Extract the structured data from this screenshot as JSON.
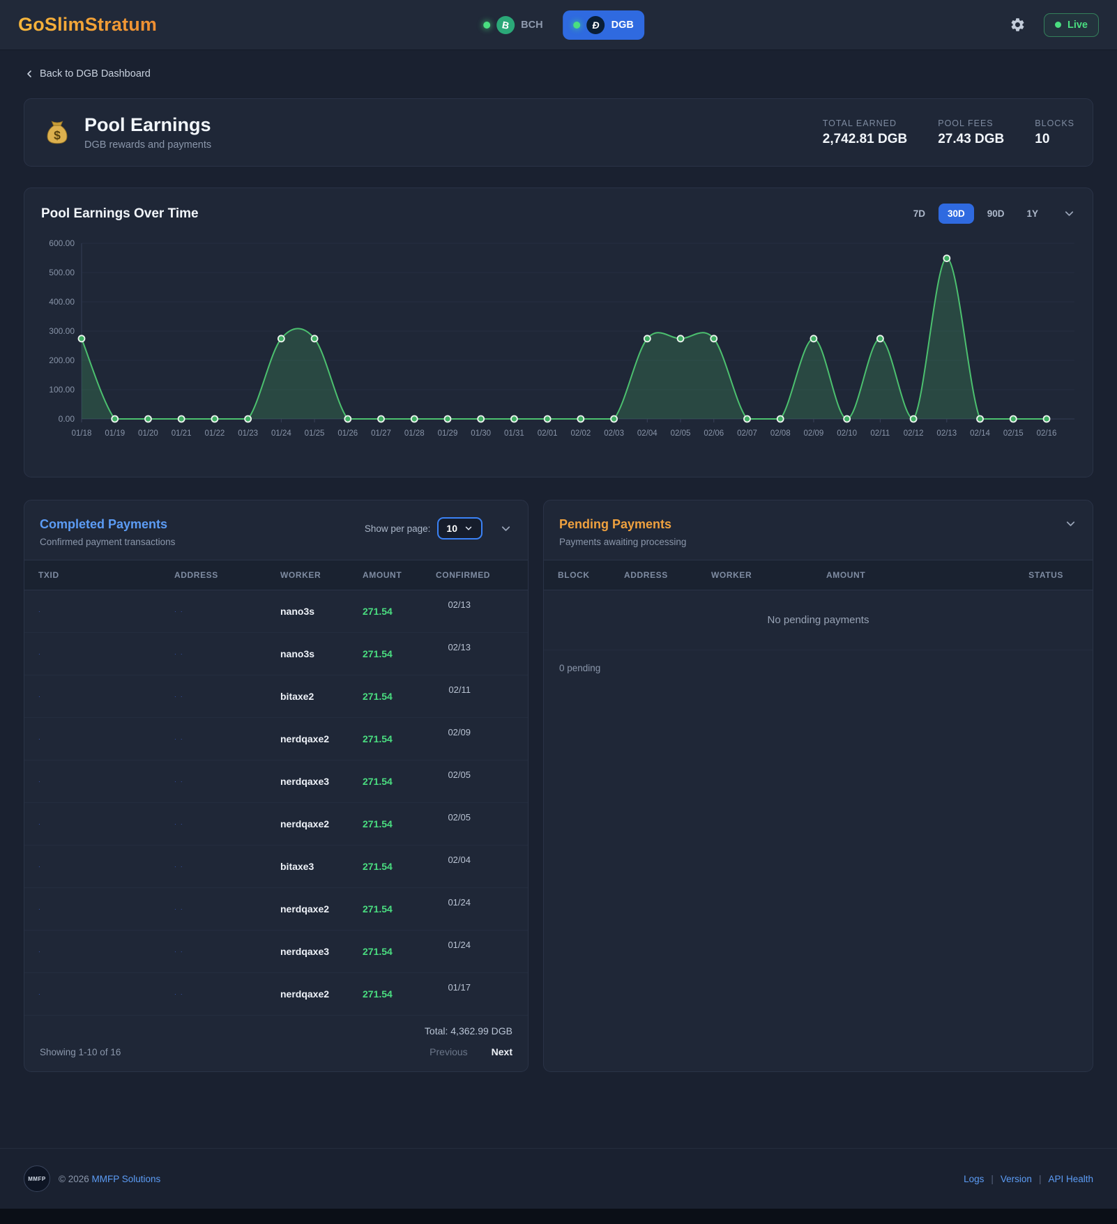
{
  "header": {
    "logo": "GoSlimStratum",
    "coins": [
      {
        "label": "BCH",
        "active": false
      },
      {
        "label": "DGB",
        "active": true
      }
    ],
    "live_label": "Live"
  },
  "breadcrumb": {
    "label": "Back to DGB Dashboard"
  },
  "summary": {
    "title": "Pool Earnings",
    "subtitle": "DGB rewards and payments",
    "stats": [
      {
        "label": "TOTAL EARNED",
        "value": "2,742.81 DGB"
      },
      {
        "label": "POOL FEES",
        "value": "27.43 DGB"
      },
      {
        "label": "BLOCKS",
        "value": "10"
      }
    ]
  },
  "chart_data": {
    "type": "area",
    "title": "Pool Earnings Over Time",
    "x": [
      "01/18",
      "01/19",
      "01/20",
      "01/21",
      "01/22",
      "01/23",
      "01/24",
      "01/25",
      "01/26",
      "01/27",
      "01/28",
      "01/29",
      "01/30",
      "01/31",
      "02/01",
      "02/02",
      "02/03",
      "02/04",
      "02/05",
      "02/06",
      "02/07",
      "02/08",
      "02/09",
      "02/10",
      "02/11",
      "02/12",
      "02/13",
      "02/14",
      "02/15",
      "02/16"
    ],
    "values": [
      274.28,
      0,
      0,
      0,
      0,
      0,
      274.28,
      274.28,
      0,
      0,
      0,
      0,
      0,
      0,
      0,
      0,
      0,
      274.28,
      274.28,
      274.28,
      0,
      0,
      274.28,
      0,
      274.28,
      0,
      548.56,
      0,
      0,
      0
    ],
    "ylim": [
      0,
      600
    ],
    "ytick_step": 100,
    "grid": true,
    "legend_position": "none",
    "line_color": "#4cc06f",
    "fill_color": "rgba(76,192,111,0.22)",
    "marker_fill": "#3fae63",
    "marker_stroke": "#eef5f0",
    "ranges": [
      "7D",
      "30D",
      "90D",
      "1Y"
    ],
    "active_range": "30D"
  },
  "completed": {
    "title": "Completed Payments",
    "subtitle": "Confirmed payment transactions",
    "show_per_page_label": "Show per page:",
    "per_page": "10",
    "columns": [
      "TXID",
      "ADDRESS",
      "WORKER",
      "AMOUNT",
      "CONFIRMED"
    ],
    "rows": [
      {
        "txid": "·",
        "address": "· ·",
        "worker": "nano3s",
        "amount": "271.54",
        "confirmed": "02/13"
      },
      {
        "txid": "·",
        "address": "· ·",
        "worker": "nano3s",
        "amount": "271.54",
        "confirmed": "02/13"
      },
      {
        "txid": "·",
        "address": "· ·",
        "worker": "bitaxe2",
        "amount": "271.54",
        "confirmed": "02/11"
      },
      {
        "txid": "·",
        "address": "· ·",
        "worker": "nerdqaxe2",
        "amount": "271.54",
        "confirmed": "02/09"
      },
      {
        "txid": "·",
        "address": "· ·",
        "worker": "nerdqaxe3",
        "amount": "271.54",
        "confirmed": "02/05"
      },
      {
        "txid": "·",
        "address": "· ·",
        "worker": "nerdqaxe2",
        "amount": "271.54",
        "confirmed": "02/05"
      },
      {
        "txid": "·",
        "address": "· ·",
        "worker": "bitaxe3",
        "amount": "271.54",
        "confirmed": "02/04"
      },
      {
        "txid": "·",
        "address": "· ·",
        "worker": "nerdqaxe2",
        "amount": "271.54",
        "confirmed": "01/24"
      },
      {
        "txid": "·",
        "address": "· ·",
        "worker": "nerdqaxe3",
        "amount": "271.54",
        "confirmed": "01/24"
      },
      {
        "txid": "·",
        "address": "· ·",
        "worker": "nerdqaxe2",
        "amount": "271.54",
        "confirmed": "01/17"
      }
    ],
    "total_label": "Total: 4,362.99 DGB",
    "showing": "Showing 1-10 of 16",
    "prev_label": "Previous",
    "next_label": "Next"
  },
  "pending": {
    "title": "Pending Payments",
    "subtitle": "Payments awaiting processing",
    "columns": [
      "BLOCK",
      "ADDRESS",
      "WORKER",
      "AMOUNT",
      "STATUS"
    ],
    "empty_message": "No pending payments",
    "count_label": "0 pending"
  },
  "footer": {
    "copyright": "© 2026",
    "company": "MMFP Solutions",
    "logo_text": "MMFP",
    "links": [
      "Logs",
      "Version",
      "API Health"
    ]
  }
}
